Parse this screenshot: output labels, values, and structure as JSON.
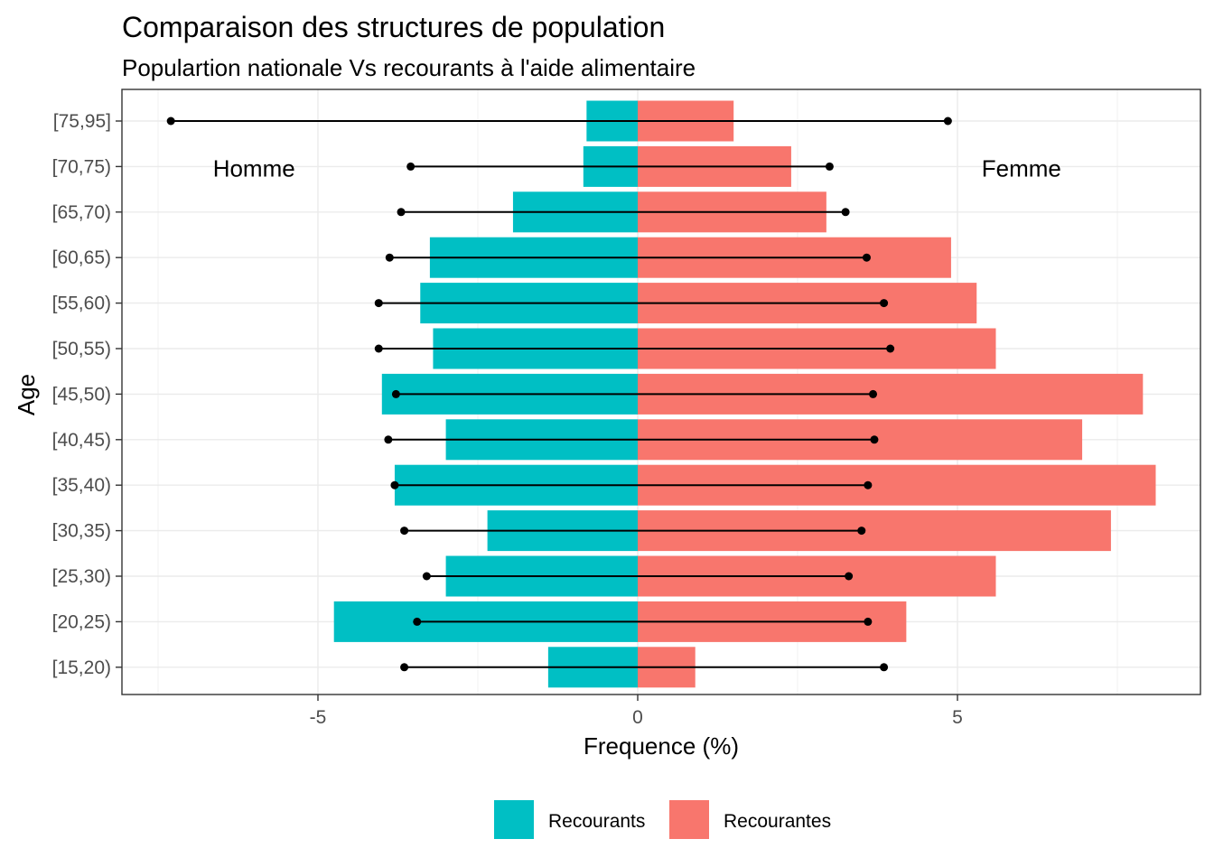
{
  "chart_data": {
    "type": "bar",
    "orientation": "horizontal",
    "title": "Comparaison des structures de population",
    "subtitle": "Populartion nationale Vs recourants à l'aide alimentaire",
    "xlabel": "Frequence (%)",
    "ylabel": "Age",
    "xlim": [
      -8.3,
      8.7
    ],
    "xticks": [
      -5,
      0,
      5
    ],
    "grid": true,
    "legend_position": "bottom",
    "annotations": [
      {
        "text": "Homme",
        "x": -6.0,
        "category": "[70,75)"
      },
      {
        "text": "Femme",
        "x": 6.0,
        "category": "[70,75)"
      }
    ],
    "categories": [
      "[15,20)",
      "[20,25)",
      "[25,30)",
      "[30,35)",
      "[35,40)",
      "[40,45)",
      "[45,50)",
      "[50,55)",
      "[55,60)",
      "[60,65)",
      "[65,70)",
      "[70,75)",
      "[75,95]"
    ],
    "series": [
      {
        "name": "Recourants",
        "color": "#00bfc4",
        "values": [
          -1.4,
          -4.75,
          -3.0,
          -2.35,
          -3.8,
          -3.0,
          -4.0,
          -3.2,
          -3.4,
          -3.25,
          -1.95,
          -0.85,
          -0.8
        ]
      },
      {
        "name": "Recourantes",
        "color": "#f8766d",
        "values": [
          0.9,
          4.2,
          5.6,
          7.4,
          8.1,
          6.95,
          7.9,
          5.6,
          5.3,
          4.9,
          2.95,
          2.4,
          1.5
        ]
      }
    ],
    "national_population": {
      "color": "#000000",
      "men": [
        -3.65,
        -3.45,
        -3.3,
        -3.65,
        -3.8,
        -3.9,
        -3.78,
        -4.05,
        -4.05,
        -3.88,
        -3.7,
        -3.55,
        -7.3
      ],
      "women": [
        3.85,
        3.6,
        3.3,
        3.5,
        3.6,
        3.7,
        3.68,
        3.95,
        3.85,
        3.58,
        3.25,
        3.0,
        4.85
      ]
    }
  }
}
